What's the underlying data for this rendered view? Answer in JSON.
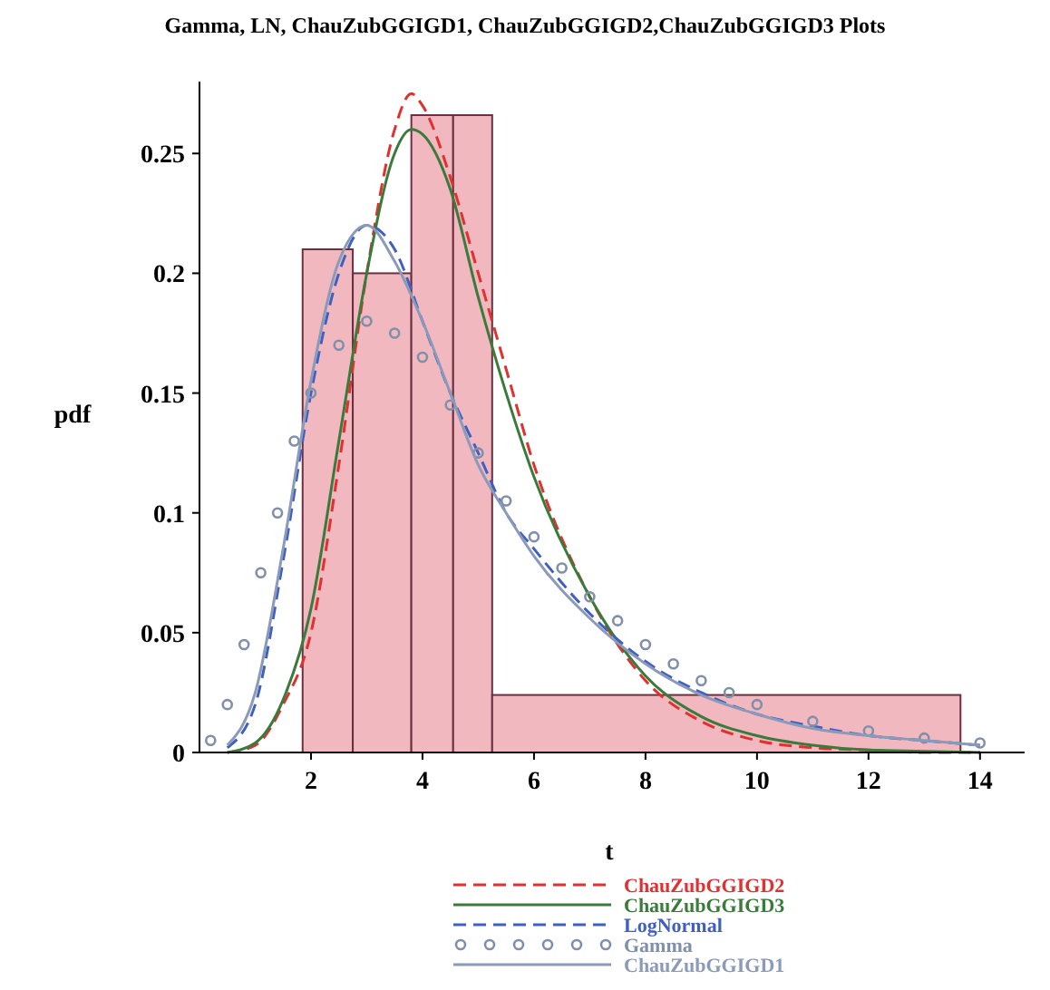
{
  "chart_data": {
    "type": "histogram",
    "title": "Gamma, LN, ChauZubGGIGD1, ChauZubGGIGD2,ChauZubGGIGD3 Plots",
    "xlabel": "t",
    "ylabel": "pdf",
    "bins": [
      1.85,
      2.75,
      3.8,
      4.55,
      5.25,
      13.65
    ],
    "values": [
      0.21,
      0.2,
      0.266,
      0.266,
      0.024
    ],
    "color": "#f2b8c0",
    "xlim": [
      0,
      14.8
    ],
    "ylim": [
      0,
      0.28
    ],
    "xticks": [
      2,
      4,
      6,
      8,
      10,
      12,
      14
    ],
    "yticks": [
      0,
      0.05,
      0.1,
      0.15,
      0.2,
      0.25
    ],
    "legend": "bottom",
    "series": [
      {
        "name": "ChauZubGGIGD2",
        "type": "line",
        "line_style": "dashed",
        "color": "#e03030",
        "x": [
          0.5,
          1,
          1.5,
          2,
          2.5,
          3,
          3.5,
          3.8,
          4,
          4.5,
          5,
          5.5,
          6,
          7,
          8,
          9,
          10,
          11,
          12,
          13,
          14
        ],
        "values": [
          0,
          0.003,
          0.02,
          0.05,
          0.12,
          0.2,
          0.26,
          0.275,
          0.27,
          0.24,
          0.2,
          0.16,
          0.12,
          0.065,
          0.03,
          0.013,
          0.005,
          0.002,
          0.001,
          0,
          0
        ]
      },
      {
        "name": "ChauZubGGIGD3",
        "type": "line",
        "line_style": "solid",
        "color": "#3a7a3a",
        "x": [
          0.5,
          1,
          1.5,
          2,
          2.5,
          3,
          3.5,
          3.8,
          4,
          4.5,
          5,
          5.5,
          6,
          7,
          8,
          9,
          10,
          11,
          12,
          13,
          14
        ],
        "values": [
          0,
          0.004,
          0.022,
          0.06,
          0.13,
          0.2,
          0.25,
          0.26,
          0.258,
          0.235,
          0.19,
          0.15,
          0.115,
          0.065,
          0.032,
          0.015,
          0.007,
          0.003,
          0.001,
          0.0005,
          0
        ]
      },
      {
        "name": "LogNormal",
        "type": "line",
        "line_style": "dashed",
        "color": "#4060c0",
        "x": [
          0.5,
          1,
          1.5,
          2,
          2.5,
          3,
          3.5,
          4,
          4.5,
          5,
          5.5,
          6,
          7,
          8,
          9,
          10,
          11,
          12,
          13,
          14
        ],
        "values": [
          0.002,
          0.02,
          0.08,
          0.15,
          0.2,
          0.22,
          0.21,
          0.18,
          0.15,
          0.125,
          0.1,
          0.085,
          0.058,
          0.038,
          0.025,
          0.016,
          0.011,
          0.007,
          0.005,
          0.003
        ]
      },
      {
        "name": "Gamma",
        "type": "scatter",
        "marker": "circle",
        "color": "#8090a8",
        "x": [
          0.2,
          0.5,
          0.8,
          1.1,
          1.4,
          1.7,
          2,
          2.5,
          3,
          3.5,
          4,
          4.5,
          5,
          5.5,
          6,
          6.5,
          7,
          7.5,
          8,
          8.5,
          9,
          9.5,
          10,
          11,
          12,
          13,
          14
        ],
        "values": [
          0.005,
          0.02,
          0.045,
          0.075,
          0.1,
          0.13,
          0.15,
          0.17,
          0.18,
          0.175,
          0.165,
          0.145,
          0.125,
          0.105,
          0.09,
          0.077,
          0.065,
          0.055,
          0.045,
          0.037,
          0.03,
          0.025,
          0.02,
          0.013,
          0.009,
          0.006,
          0.004
        ]
      },
      {
        "name": "ChauZubGGIGD1",
        "type": "line",
        "line_style": "solid",
        "color": "#8a9ab8",
        "x": [
          0.5,
          1,
          1.5,
          2,
          2.5,
          3,
          3.5,
          4,
          4.5,
          5,
          5.5,
          6,
          7,
          8,
          9,
          10,
          11,
          12,
          13,
          14
        ],
        "values": [
          0.003,
          0.025,
          0.085,
          0.155,
          0.205,
          0.22,
          0.205,
          0.18,
          0.15,
          0.12,
          0.1,
          0.082,
          0.056,
          0.037,
          0.024,
          0.016,
          0.01,
          0.007,
          0.005,
          0.003
        ]
      }
    ]
  }
}
